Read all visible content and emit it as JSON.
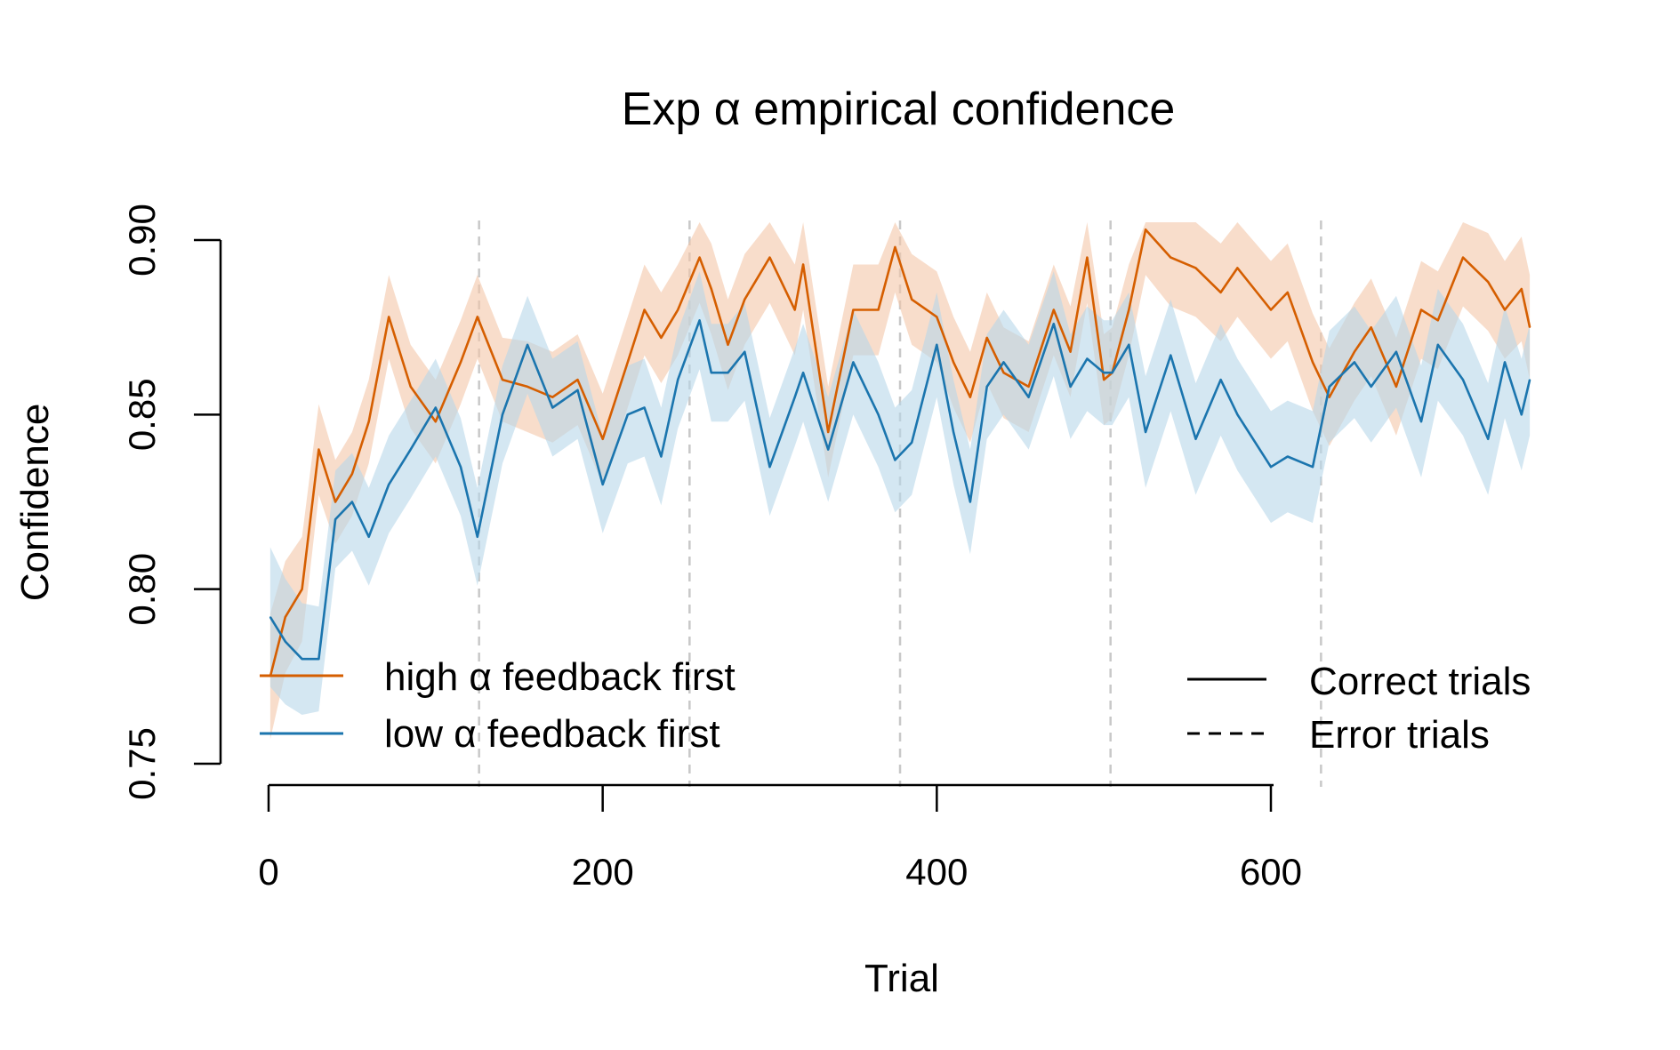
{
  "chart_data": {
    "type": "line",
    "title": "Exp α empirical confidence",
    "xlabel": "Trial",
    "ylabel": "Confidence",
    "xlim": [
      -3,
      758
    ],
    "ylim": [
      0.75,
      0.9
    ],
    "x_ticks": [
      0,
      200,
      400,
      600
    ],
    "x_tick_labels": [
      "0",
      "200",
      "400",
      "600"
    ],
    "y_ticks": [
      0.75,
      0.8,
      0.85,
      0.9
    ],
    "y_tick_labels": [
      "0.75",
      "0.80",
      "0.85",
      "0.90"
    ],
    "grid": false,
    "block_boundaries": [
      126,
      252,
      378,
      504,
      630
    ],
    "shaded_band": "confidence interval around each line",
    "series": [
      {
        "name": "high α feedback first",
        "color": "#D55E00",
        "band_color": "#F4C7A8",
        "x": [
          1,
          10,
          20,
          30,
          40,
          50,
          60,
          72,
          85,
          100,
          115,
          125,
          140,
          155,
          170,
          185,
          200,
          215,
          225,
          235,
          245,
          258,
          265,
          275,
          285,
          300,
          315,
          320,
          335,
          350,
          365,
          375,
          385,
          400,
          410,
          420,
          430,
          440,
          455,
          470,
          480,
          490,
          500,
          505,
          515,
          525,
          540,
          555,
          570,
          580,
          600,
          610,
          625,
          635,
          650,
          660,
          675,
          690,
          700,
          715,
          730,
          740,
          750,
          755
        ],
        "y": [
          0.775,
          0.792,
          0.8,
          0.84,
          0.825,
          0.833,
          0.848,
          0.878,
          0.858,
          0.848,
          0.865,
          0.878,
          0.86,
          0.858,
          0.855,
          0.86,
          0.843,
          0.865,
          0.88,
          0.872,
          0.88,
          0.895,
          0.886,
          0.87,
          0.883,
          0.895,
          0.88,
          0.893,
          0.845,
          0.88,
          0.88,
          0.898,
          0.883,
          0.878,
          0.865,
          0.855,
          0.872,
          0.862,
          0.858,
          0.88,
          0.868,
          0.895,
          0.86,
          0.862,
          0.88,
          0.903,
          0.895,
          0.892,
          0.885,
          0.892,
          0.88,
          0.885,
          0.865,
          0.855,
          0.868,
          0.875,
          0.858,
          0.88,
          0.877,
          0.895,
          0.888,
          0.88,
          0.886,
          0.875
        ],
        "ci": [
          0.018,
          0.016,
          0.015,
          0.013,
          0.012,
          0.012,
          0.012,
          0.012,
          0.012,
          0.012,
          0.012,
          0.012,
          0.012,
          0.013,
          0.013,
          0.013,
          0.013,
          0.013,
          0.013,
          0.013,
          0.013,
          0.013,
          0.013,
          0.013,
          0.013,
          0.013,
          0.013,
          0.013,
          0.013,
          0.013,
          0.013,
          0.013,
          0.013,
          0.013,
          0.013,
          0.013,
          0.013,
          0.013,
          0.013,
          0.013,
          0.013,
          0.013,
          0.013,
          0.013,
          0.013,
          0.013,
          0.014,
          0.014,
          0.014,
          0.014,
          0.014,
          0.014,
          0.014,
          0.014,
          0.014,
          0.014,
          0.014,
          0.014,
          0.014,
          0.014,
          0.014,
          0.014,
          0.015,
          0.015
        ]
      },
      {
        "name": "low α feedback first",
        "color": "#1B75AE",
        "band_color": "#B7D7EA",
        "x": [
          1,
          10,
          20,
          30,
          40,
          50,
          60,
          72,
          85,
          100,
          115,
          125,
          140,
          155,
          170,
          185,
          200,
          215,
          225,
          235,
          245,
          258,
          265,
          275,
          285,
          300,
          315,
          320,
          335,
          350,
          365,
          375,
          385,
          400,
          410,
          420,
          430,
          440,
          455,
          470,
          480,
          490,
          500,
          505,
          515,
          525,
          540,
          555,
          570,
          580,
          600,
          610,
          625,
          635,
          650,
          660,
          675,
          690,
          700,
          715,
          730,
          740,
          750,
          755
        ],
        "y": [
          0.792,
          0.785,
          0.78,
          0.78,
          0.82,
          0.825,
          0.815,
          0.83,
          0.84,
          0.852,
          0.835,
          0.815,
          0.85,
          0.87,
          0.852,
          0.857,
          0.83,
          0.85,
          0.852,
          0.838,
          0.86,
          0.877,
          0.862,
          0.862,
          0.868,
          0.835,
          0.855,
          0.862,
          0.84,
          0.865,
          0.85,
          0.837,
          0.842,
          0.87,
          0.845,
          0.825,
          0.858,
          0.865,
          0.855,
          0.876,
          0.858,
          0.866,
          0.862,
          0.862,
          0.87,
          0.845,
          0.867,
          0.843,
          0.86,
          0.85,
          0.835,
          0.838,
          0.835,
          0.858,
          0.865,
          0.858,
          0.868,
          0.848,
          0.87,
          0.86,
          0.843,
          0.865,
          0.85,
          0.86
        ],
        "ci": [
          0.02,
          0.018,
          0.016,
          0.015,
          0.014,
          0.014,
          0.014,
          0.014,
          0.014,
          0.014,
          0.014,
          0.014,
          0.014,
          0.014,
          0.014,
          0.014,
          0.014,
          0.014,
          0.014,
          0.014,
          0.014,
          0.014,
          0.014,
          0.014,
          0.014,
          0.014,
          0.014,
          0.014,
          0.015,
          0.015,
          0.015,
          0.015,
          0.015,
          0.015,
          0.015,
          0.015,
          0.015,
          0.015,
          0.015,
          0.015,
          0.015,
          0.015,
          0.015,
          0.015,
          0.015,
          0.016,
          0.016,
          0.016,
          0.016,
          0.016,
          0.016,
          0.016,
          0.016,
          0.016,
          0.016,
          0.016,
          0.016,
          0.016,
          0.016,
          0.016,
          0.016,
          0.016,
          0.016,
          0.016
        ]
      }
    ],
    "legend_series": {
      "position": "bottom-left",
      "items": [
        {
          "label": "high α feedback first",
          "color": "#D55E00"
        },
        {
          "label": "low α feedback first",
          "color": "#1B75AE"
        }
      ]
    },
    "legend_linetype": {
      "position": "bottom-right",
      "items": [
        {
          "label": "Correct trials",
          "line_style": "solid"
        },
        {
          "label": "Error trials",
          "line_style": "dashed"
        }
      ]
    }
  }
}
